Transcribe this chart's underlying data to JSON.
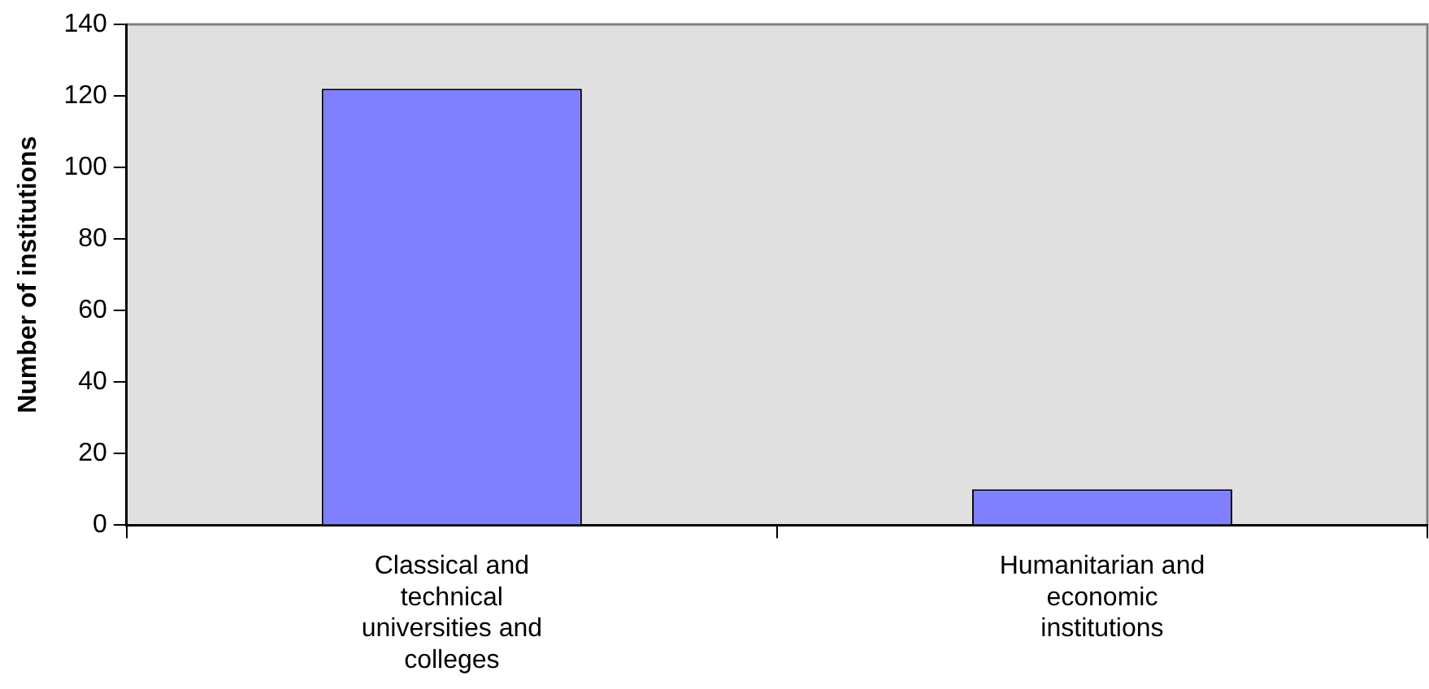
{
  "chart_data": {
    "type": "bar",
    "ylabel": "Number of institutions",
    "categories": [
      "Classical and technical universities and colleges",
      "Humanitarian and economic institutions"
    ],
    "values": [
      122,
      10
    ],
    "color": "#8080ff",
    "ylim": [
      0,
      140
    ],
    "yticks": [
      0,
      20,
      40,
      60,
      80,
      100,
      120,
      140
    ],
    "grid": false,
    "legend": false
  }
}
